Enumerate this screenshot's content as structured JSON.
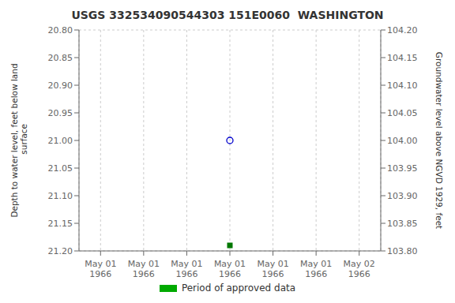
{
  "chart_data": {
    "type": "scatter",
    "title": "USGS 332534090544303 151E0060  WASHINGTON",
    "y_label": "Depth to water level, feet below land\n surface",
    "y2_label": "Groundwater level above NGVD 1929, feet",
    "categories": [
      "May 01\n1966",
      "May 01\n1966",
      "May 01\n1966",
      "May 01\n1966",
      "May 01\n1966",
      "May 01\n1966",
      "May 02\n1966"
    ],
    "series": [
      {
        "color": "#0000cc",
        "marker": "circle_open",
        "values": [
          null,
          null,
          null,
          21.0,
          null,
          null,
          null
        ]
      },
      {
        "color": "#007700",
        "marker": "square",
        "values": [
          null,
          null,
          null,
          21.19,
          null,
          null,
          null
        ]
      },
      {
        "name": "Period of approved data",
        "color": "#00aa00",
        "type": "bar",
        "values": [
          null,
          null,
          null,
          null,
          null,
          null,
          null
        ]
      }
    ],
    "ylim": [
      21.2,
      20.8
    ],
    "yticks": [
      {
        "value": 20.8,
        "label": "20.80"
      },
      {
        "value": 20.85,
        "label": "20.85"
      },
      {
        "value": 20.9,
        "label": "20.90"
      },
      {
        "value": 20.95,
        "label": "20.95"
      },
      {
        "value": 21.0,
        "label": "21.00"
      },
      {
        "value": 21.05,
        "label": "21.05"
      },
      {
        "value": 21.1,
        "label": "21.10"
      },
      {
        "value": 21.15,
        "label": "21.15"
      },
      {
        "value": 21.2,
        "label": "21.20"
      }
    ],
    "y2lim": [
      103.8,
      104.2
    ],
    "y2ticks": [
      {
        "value": 104.2,
        "label": "104.20"
      },
      {
        "value": 104.15,
        "label": "104.15"
      },
      {
        "value": 104.1,
        "label": "104.10"
      },
      {
        "value": 104.05,
        "label": "104.05"
      },
      {
        "value": 104.0,
        "label": "104.00"
      },
      {
        "value": 103.95,
        "label": "103.95"
      },
      {
        "value": 103.9,
        "label": "103.90"
      },
      {
        "value": 103.85,
        "label": "103.85"
      },
      {
        "value": 103.8,
        "label": "103.80"
      }
    ],
    "grid": true,
    "legend": "bottom"
  }
}
